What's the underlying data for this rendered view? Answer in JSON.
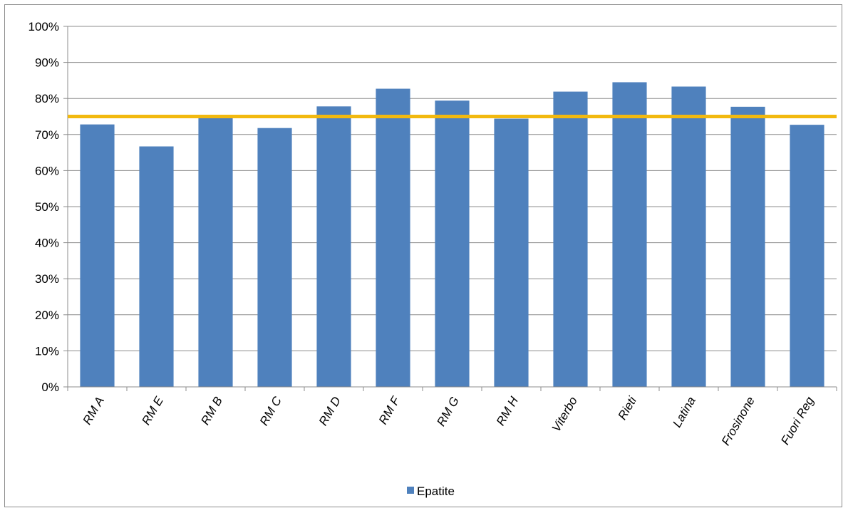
{
  "chart_data": {
    "type": "bar",
    "categories": [
      "RM A",
      "RM E",
      "RM B",
      "RM C",
      "RM D",
      "RM F",
      "RM G",
      "RM H",
      "Viterbo",
      "Rieti",
      "Latina",
      "Frosinone",
      "Fuori Reg"
    ],
    "series": [
      {
        "name": "Epatite",
        "values": [
          72.8,
          66.7,
          74.7,
          71.8,
          77.8,
          82.7,
          79.4,
          74.4,
          81.9,
          84.5,
          83.3,
          77.7,
          72.7
        ],
        "color": "#4f81bd"
      }
    ],
    "reference_line": {
      "value": 75,
      "color": "#f2b90f"
    },
    "ylim": [
      0,
      100
    ],
    "yticks": [
      "0%",
      "10%",
      "20%",
      "30%",
      "40%",
      "50%",
      "60%",
      "70%",
      "80%",
      "90%",
      "100%"
    ],
    "grid": true,
    "legend": "bottom-center"
  }
}
